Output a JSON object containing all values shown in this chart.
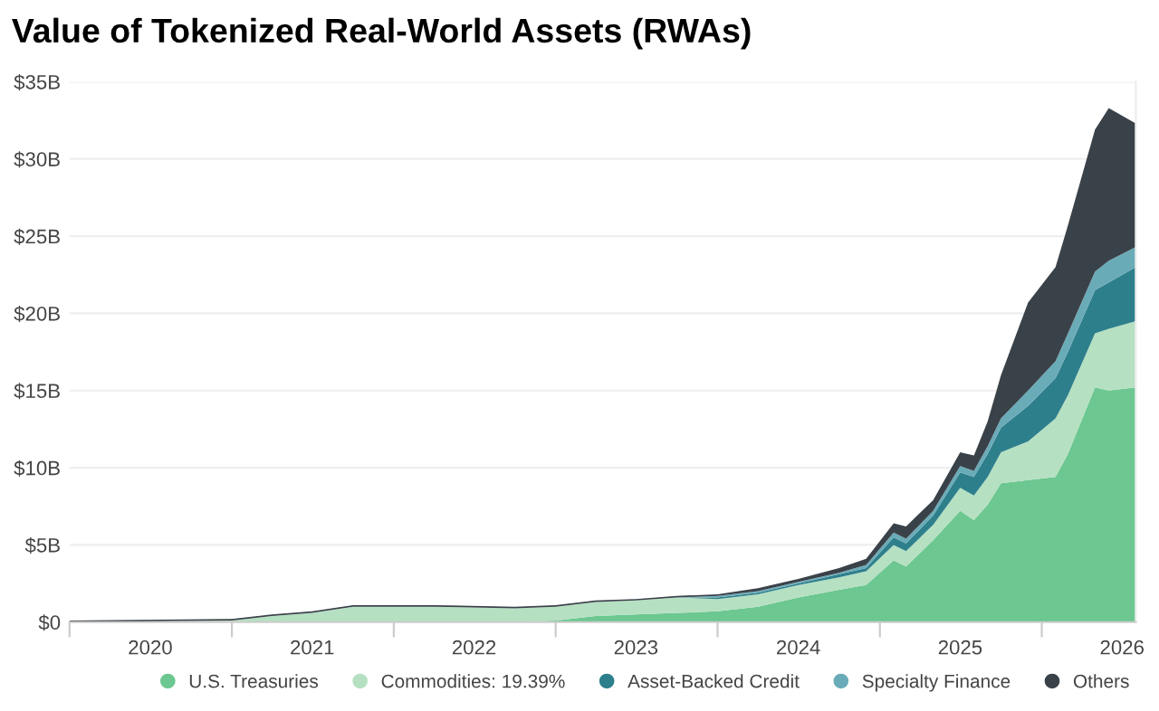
{
  "chart_data": {
    "type": "area",
    "stacked": true,
    "title": "Value of Tokenized Real-World Assets (RWAs)",
    "x": [
      "2020-01-01",
      "2021-01-01",
      "2021-04-01",
      "2021-07-01",
      "2021-10-01",
      "2022-04-01",
      "2022-10-01",
      "2023-01-01",
      "2023-04-01",
      "2023-07-01",
      "2023-10-01",
      "2024-01-01",
      "2024-04-01",
      "2024-07-01",
      "2024-10-01",
      "2024-12-01",
      "2025-02-01",
      "2025-03-01",
      "2025-05-01",
      "2025-07-01",
      "2025-08-01",
      "2025-09-01",
      "2025-10-01",
      "2025-12-01",
      "2026-02-01",
      "2026-03-01",
      "2026-05-01",
      "2026-06-01",
      "2026-08-01"
    ],
    "series": [
      {
        "name": "U.S. Treasuries",
        "color": "#6cc790",
        "values": [
          0,
          0,
          0,
          0,
          0,
          0,
          0,
          0.1,
          0.4,
          0.5,
          0.6,
          0.7,
          1.0,
          1.6,
          2.1,
          2.4,
          4.0,
          3.6,
          5.3,
          7.2,
          6.6,
          7.6,
          9.0,
          9.2,
          9.4,
          10.9,
          15.2,
          15.0,
          15.2
        ]
      },
      {
        "name": "Commodities: 19.39%",
        "color": "#b5e0c2",
        "values": [
          0,
          0.1,
          0.4,
          0.6,
          1.0,
          1.0,
          0.9,
          0.9,
          0.9,
          0.9,
          1.0,
          0.8,
          0.8,
          0.8,
          0.8,
          0.9,
          1.0,
          1.0,
          1.0,
          1.5,
          1.6,
          1.8,
          2.0,
          2.5,
          3.8,
          3.8,
          3.5,
          4.0,
          4.3
        ]
      },
      {
        "name": "Asset-Backed Credit",
        "color": "#2e7f8c",
        "values": [
          0,
          0,
          0,
          0,
          0,
          0,
          0,
          0,
          0,
          0,
          0,
          0.1,
          0.1,
          0.1,
          0.2,
          0.2,
          0.5,
          0.5,
          0.6,
          1.0,
          1.2,
          1.5,
          1.6,
          2.3,
          2.6,
          2.8,
          2.8,
          3.0,
          3.5
        ]
      },
      {
        "name": "Specialty Finance",
        "color": "#6aabb8",
        "values": [
          0,
          0,
          0,
          0,
          0,
          0,
          0,
          0,
          0,
          0,
          0,
          0.1,
          0.1,
          0.1,
          0.1,
          0.2,
          0.3,
          0.3,
          0.3,
          0.4,
          0.4,
          0.5,
          0.6,
          1.0,
          1.1,
          1.2,
          1.2,
          1.4,
          1.3
        ]
      },
      {
        "name": "Others",
        "color": "#3a4249",
        "values": [
          0.1,
          0.1,
          0.1,
          0.1,
          0.1,
          0.1,
          0.1,
          0.1,
          0.1,
          0.1,
          0.1,
          0.1,
          0.2,
          0.2,
          0.3,
          0.4,
          0.6,
          0.8,
          0.7,
          0.9,
          1.0,
          1.6,
          2.8,
          5.7,
          6.1,
          7.0,
          9.2,
          9.9,
          8.0
        ]
      }
    ],
    "xlim": [
      "2020-01-01",
      "2026-08-01"
    ],
    "xticks": [
      {
        "value": "2020-01-01",
        "label": null
      },
      {
        "value": "2020-07-01",
        "label": "2020"
      },
      {
        "value": "2021-01-01",
        "label": null
      },
      {
        "value": "2021-07-01",
        "label": "2021"
      },
      {
        "value": "2022-01-01",
        "label": null
      },
      {
        "value": "2022-07-01",
        "label": "2022"
      },
      {
        "value": "2023-01-01",
        "label": null
      },
      {
        "value": "2023-07-01",
        "label": "2023"
      },
      {
        "value": "2024-01-01",
        "label": null
      },
      {
        "value": "2024-07-01",
        "label": "2024"
      },
      {
        "value": "2025-01-01",
        "label": null
      },
      {
        "value": "2025-07-01",
        "label": "2025"
      },
      {
        "value": "2026-01-01",
        "label": null
      },
      {
        "value": "2026-07-01",
        "label": "2026"
      }
    ],
    "ylim": [
      0,
      35
    ],
    "yticks": [
      {
        "value": 0,
        "label": "$0"
      },
      {
        "value": 5,
        "label": "$5B"
      },
      {
        "value": 10,
        "label": "$10B"
      },
      {
        "value": 15,
        "label": "$15B"
      },
      {
        "value": 20,
        "label": "$20B"
      },
      {
        "value": 25,
        "label": "$25B"
      },
      {
        "value": 30,
        "label": "$30B"
      },
      {
        "value": 35,
        "label": "$35B"
      }
    ],
    "grid": "y",
    "legend": "bottom right"
  }
}
